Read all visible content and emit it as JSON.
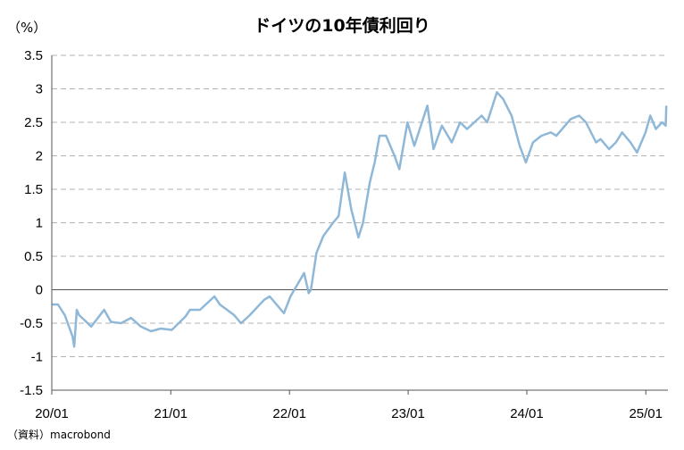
{
  "chart_data": {
    "type": "line",
    "title": "ドイツの10年債利回り",
    "unit_label": "（%）",
    "source": "（資料）macrobond",
    "ylim": [
      -1.5,
      3.5
    ],
    "y_ticks": [
      "3.5",
      "3",
      "2.5",
      "2",
      "1.5",
      "1",
      "0.5",
      "0",
      "-0.5",
      "-1",
      "-1.5"
    ],
    "x_range": [
      "2020-01",
      "2025-03"
    ],
    "x_ticks": [
      "20/01",
      "21/01",
      "22/01",
      "23/01",
      "24/01",
      "25/01"
    ],
    "grid": true,
    "legend": "none",
    "series": [
      {
        "color": "#8fb8d8",
        "points": [
          [
            "2020-01-02",
            -0.22
          ],
          [
            "2020-01-20",
            -0.22
          ],
          [
            "2020-02-10",
            -0.38
          ],
          [
            "2020-03-05",
            -0.7
          ],
          [
            "2020-03-10",
            -0.85
          ],
          [
            "2020-03-18",
            -0.3
          ],
          [
            "2020-03-25",
            -0.38
          ],
          [
            "2020-04-10",
            -0.45
          ],
          [
            "2020-05-01",
            -0.55
          ],
          [
            "2020-06-10",
            -0.3
          ],
          [
            "2020-07-01",
            -0.48
          ],
          [
            "2020-08-01",
            -0.5
          ],
          [
            "2020-09-01",
            -0.42
          ],
          [
            "2020-10-01",
            -0.55
          ],
          [
            "2020-11-01",
            -0.62
          ],
          [
            "2020-12-01",
            -0.58
          ],
          [
            "2021-01-04",
            -0.6
          ],
          [
            "2021-02-15",
            -0.4
          ],
          [
            "2021-03-01",
            -0.3
          ],
          [
            "2021-04-01",
            -0.3
          ],
          [
            "2021-05-15",
            -0.1
          ],
          [
            "2021-06-01",
            -0.22
          ],
          [
            "2021-07-15",
            -0.38
          ],
          [
            "2021-08-05",
            -0.5
          ],
          [
            "2021-09-01",
            -0.38
          ],
          [
            "2021-10-15",
            -0.15
          ],
          [
            "2021-11-01",
            -0.1
          ],
          [
            "2021-12-15",
            -0.35
          ],
          [
            "2022-01-04",
            -0.1
          ],
          [
            "2022-02-15",
            0.25
          ],
          [
            "2022-03-01",
            -0.05
          ],
          [
            "2022-03-08",
            0.0
          ],
          [
            "2022-03-25",
            0.55
          ],
          [
            "2022-04-15",
            0.8
          ],
          [
            "2022-05-15",
            1.0
          ],
          [
            "2022-06-01",
            1.1
          ],
          [
            "2022-06-20",
            1.75
          ],
          [
            "2022-07-10",
            1.2
          ],
          [
            "2022-08-01",
            0.78
          ],
          [
            "2022-08-15",
            1.0
          ],
          [
            "2022-09-05",
            1.6
          ],
          [
            "2022-09-20",
            1.9
          ],
          [
            "2022-10-05",
            2.3
          ],
          [
            "2022-10-25",
            2.3
          ],
          [
            "2022-11-20",
            2.0
          ],
          [
            "2022-12-05",
            1.8
          ],
          [
            "2022-12-30",
            2.5
          ],
          [
            "2023-01-20",
            2.15
          ],
          [
            "2023-03-01",
            2.75
          ],
          [
            "2023-03-20",
            2.1
          ],
          [
            "2023-04-15",
            2.45
          ],
          [
            "2023-05-15",
            2.2
          ],
          [
            "2023-06-10",
            2.5
          ],
          [
            "2023-07-01",
            2.4
          ],
          [
            "2023-08-15",
            2.6
          ],
          [
            "2023-09-01",
            2.5
          ],
          [
            "2023-10-01",
            2.95
          ],
          [
            "2023-10-20",
            2.85
          ],
          [
            "2023-11-15",
            2.6
          ],
          [
            "2023-12-10",
            2.15
          ],
          [
            "2023-12-29",
            1.9
          ],
          [
            "2024-01-20",
            2.2
          ],
          [
            "2024-02-15",
            2.3
          ],
          [
            "2024-03-15",
            2.35
          ],
          [
            "2024-04-01",
            2.3
          ],
          [
            "2024-05-15",
            2.55
          ],
          [
            "2024-06-10",
            2.6
          ],
          [
            "2024-07-01",
            2.5
          ],
          [
            "2024-08-01",
            2.2
          ],
          [
            "2024-08-15",
            2.25
          ],
          [
            "2024-09-10",
            2.1
          ],
          [
            "2024-10-01",
            2.2
          ],
          [
            "2024-10-20",
            2.35
          ],
          [
            "2024-11-15",
            2.2
          ],
          [
            "2024-12-05",
            2.05
          ],
          [
            "2024-12-31",
            2.35
          ],
          [
            "2025-01-15",
            2.6
          ],
          [
            "2025-02-01",
            2.4
          ],
          [
            "2025-02-20",
            2.5
          ],
          [
            "2025-03-03",
            2.45
          ],
          [
            "2025-03-05",
            2.75
          ]
        ]
      }
    ]
  }
}
